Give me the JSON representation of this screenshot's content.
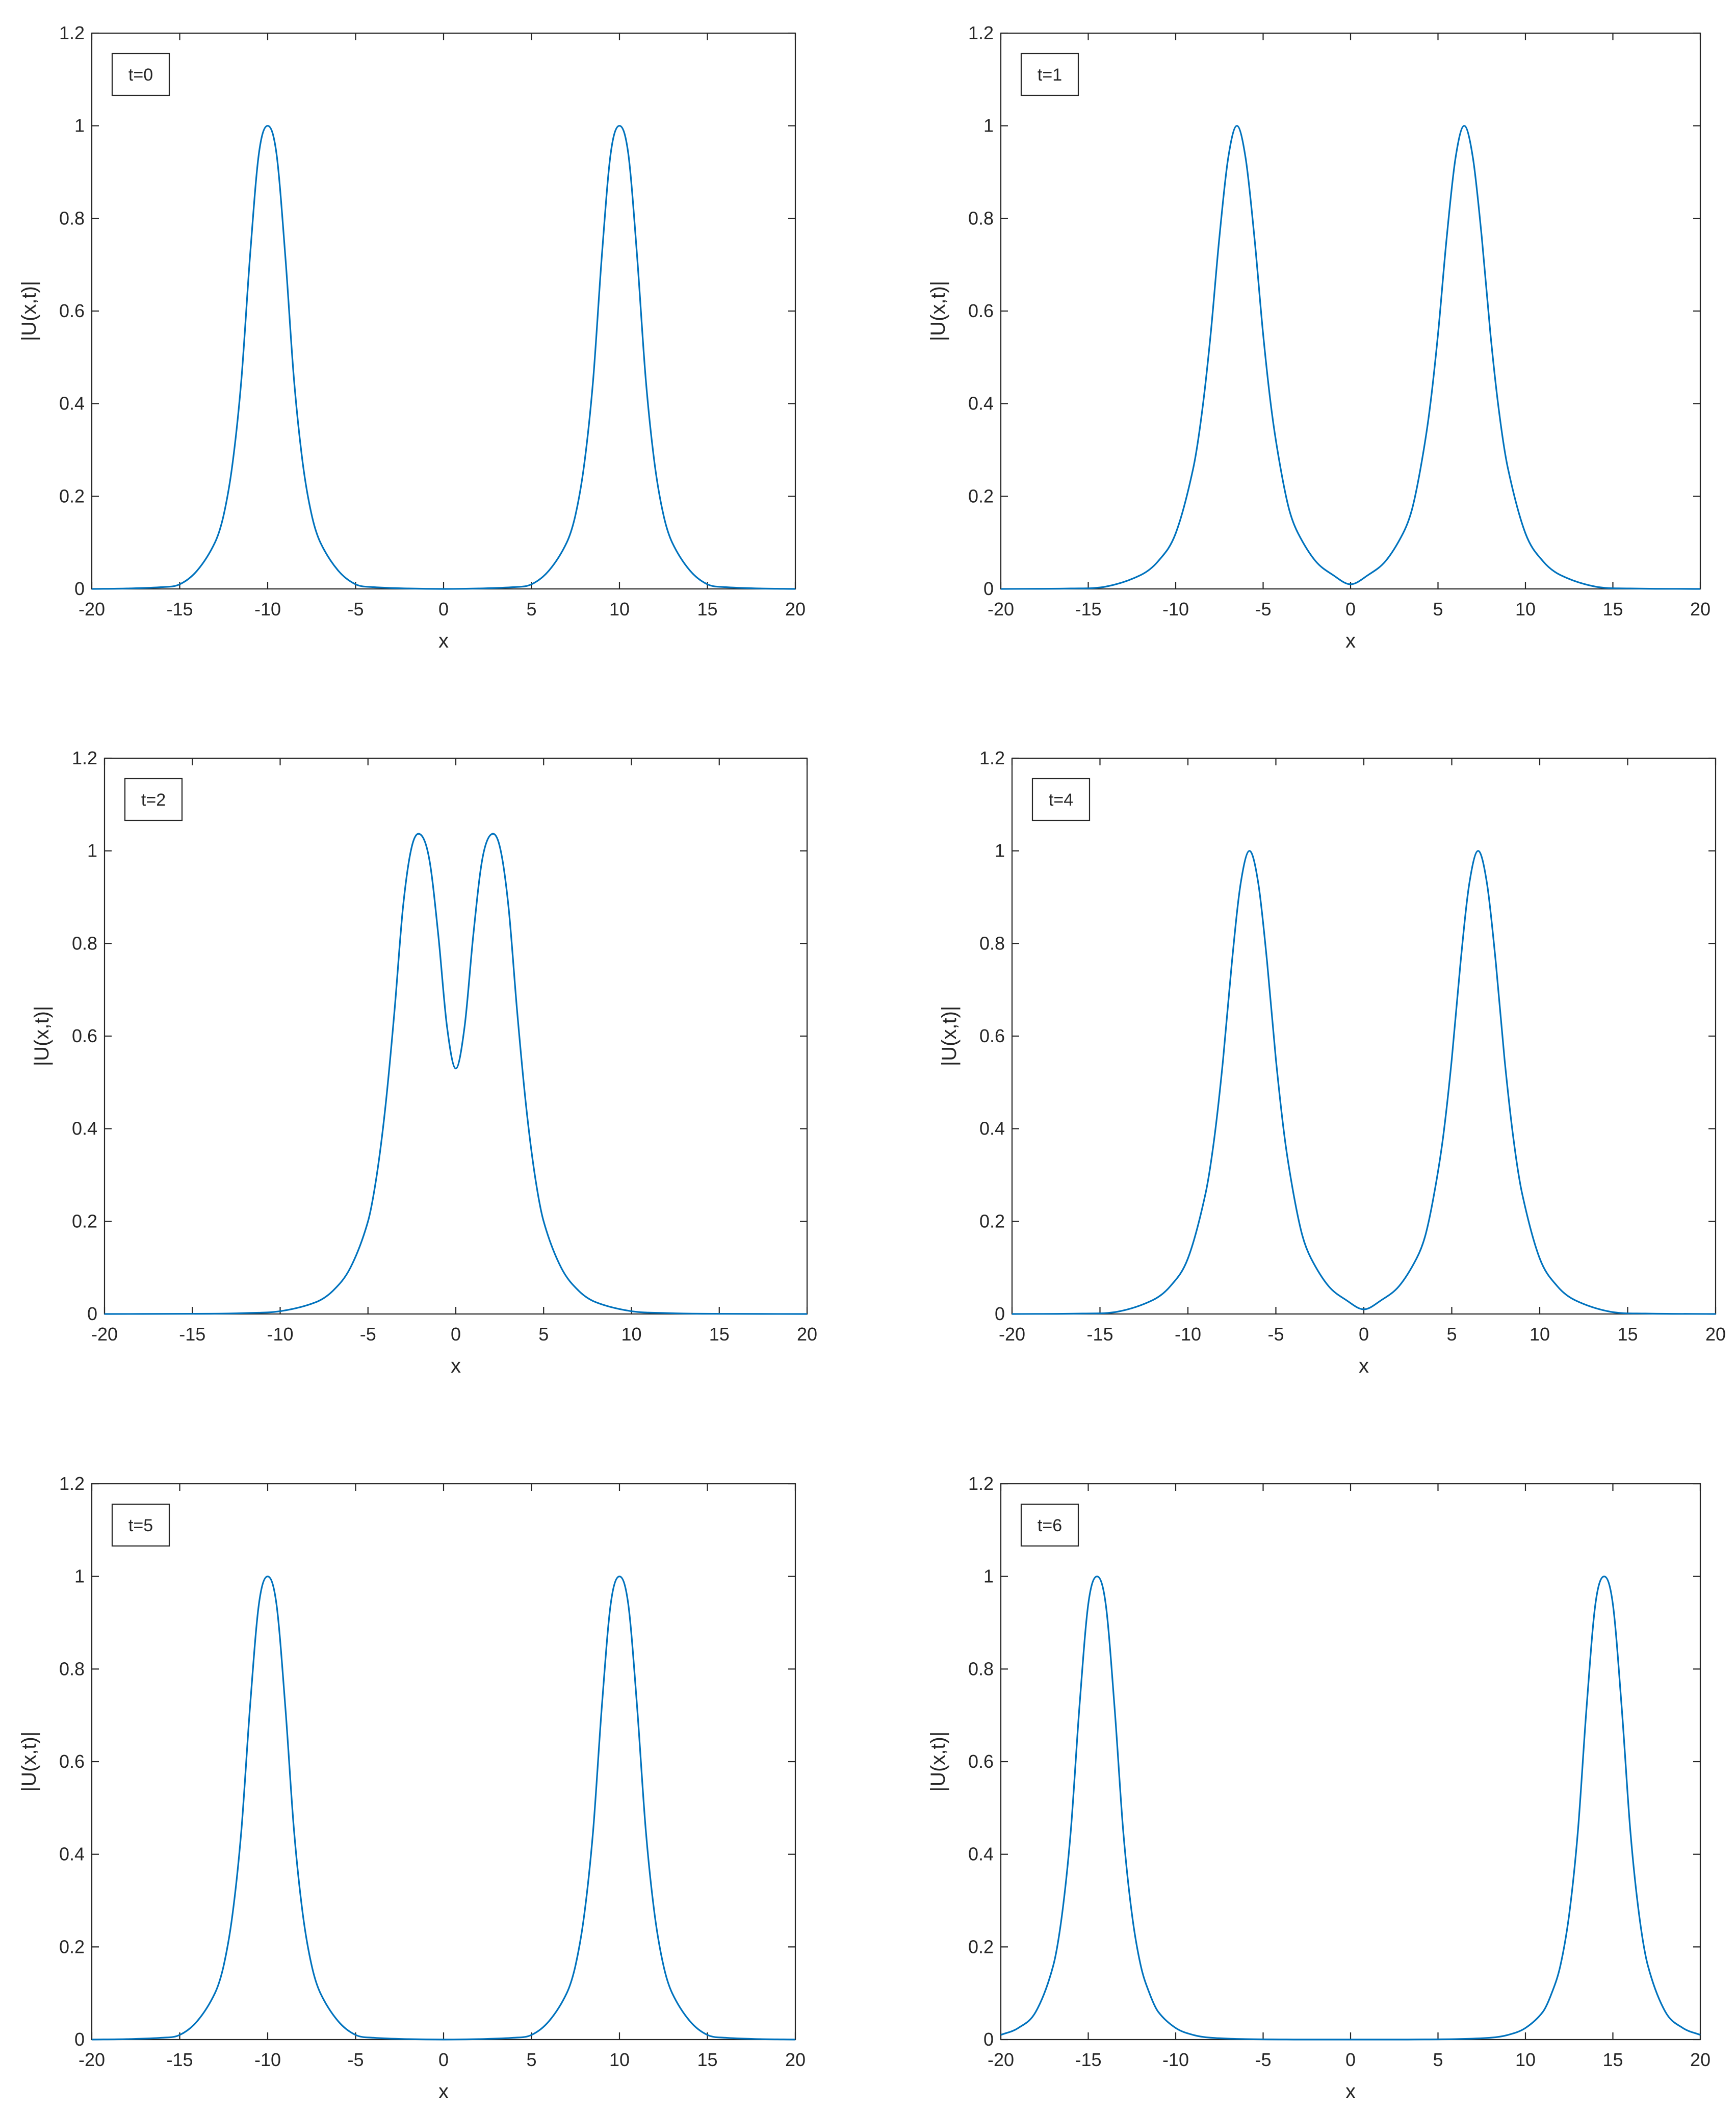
{
  "line_color": "#0072BD",
  "chart_data": [
    {
      "type": "line",
      "annotation": "t=0",
      "xlabel": "x",
      "ylabel": "|U(x,t)|",
      "xlim": [
        -20,
        20
      ],
      "ylim": [
        0,
        1.2
      ],
      "xticks": [
        "-20",
        "-15",
        "-10",
        "-5",
        "0",
        "5",
        "10",
        "15",
        "20"
      ],
      "yticks": [
        "0",
        "0.2",
        "0.4",
        "0.6",
        "0.8",
        "1",
        "1.2"
      ],
      "grid": false,
      "x": [
        -20,
        -18,
        -16,
        -15,
        -14,
        -13,
        -12.5,
        -12,
        -11.5,
        -11,
        -10.5,
        -10,
        -9.5,
        -9,
        -8.5,
        -8,
        -7.5,
        -7,
        -6,
        -5,
        -4,
        -2,
        0,
        2,
        4,
        5,
        6,
        7,
        7.5,
        8,
        8.5,
        9,
        9.5,
        10,
        10.5,
        11,
        11.5,
        12,
        12.5,
        13,
        14,
        15,
        16,
        18,
        20
      ],
      "y": [
        0,
        0.001,
        0.004,
        0.01,
        0.04,
        0.1,
        0.16,
        0.27,
        0.45,
        0.72,
        0.94,
        1.0,
        0.94,
        0.72,
        0.45,
        0.27,
        0.16,
        0.1,
        0.04,
        0.01,
        0.004,
        0.001,
        0,
        0.001,
        0.004,
        0.01,
        0.04,
        0.1,
        0.16,
        0.27,
        0.45,
        0.72,
        0.94,
        1.0,
        0.94,
        0.72,
        0.45,
        0.27,
        0.16,
        0.1,
        0.04,
        0.01,
        0.004,
        0.001,
        0
      ]
    },
    {
      "type": "line",
      "annotation": "t=1",
      "xlabel": "x",
      "ylabel": "|U(x,t)|",
      "xlim": [
        -20,
        20
      ],
      "ylim": [
        0,
        1.2
      ],
      "xticks": [
        "-20",
        "-15",
        "-10",
        "-5",
        "0",
        "5",
        "10",
        "15",
        "20"
      ],
      "yticks": [
        "0",
        "0.2",
        "0.4",
        "0.6",
        "0.8",
        "1",
        "1.2"
      ],
      "grid": false,
      "x": [
        -20,
        -16,
        -14,
        -12,
        -11,
        -10,
        -9,
        -8.5,
        -8,
        -7.5,
        -7,
        -6.5,
        -6,
        -5.5,
        -5,
        -4.5,
        -4,
        -3.5,
        -3,
        -2,
        -1,
        0,
        1,
        2,
        3,
        3.5,
        4,
        4.5,
        5,
        5.5,
        6,
        6.5,
        7,
        7.5,
        8,
        8.5,
        9,
        10,
        11,
        12,
        14,
        16,
        20
      ],
      "y": [
        0,
        0.001,
        0.005,
        0.03,
        0.06,
        0.12,
        0.26,
        0.38,
        0.55,
        0.76,
        0.93,
        1.0,
        0.93,
        0.76,
        0.55,
        0.38,
        0.26,
        0.17,
        0.12,
        0.06,
        0.03,
        0.01,
        0.03,
        0.06,
        0.12,
        0.17,
        0.26,
        0.38,
        0.55,
        0.76,
        0.93,
        1.0,
        0.93,
        0.76,
        0.55,
        0.38,
        0.26,
        0.12,
        0.06,
        0.03,
        0.005,
        0.001,
        0
      ]
    },
    {
      "type": "line",
      "annotation": "t=2",
      "xlabel": "x",
      "ylabel": "|U(x,t)|",
      "xlim": [
        -20,
        20
      ],
      "ylim": [
        0,
        1.2
      ],
      "xticks": [
        "-20",
        "-15",
        "-10",
        "-5",
        "0",
        "5",
        "10",
        "15",
        "20"
      ],
      "yticks": [
        "0",
        "0.2",
        "0.4",
        "0.6",
        "0.8",
        "1",
        "1.2"
      ],
      "grid": false,
      "x": [
        -20,
        -14,
        -12,
        -10,
        -8,
        -7,
        -6,
        -5,
        -4.5,
        -4,
        -3.5,
        -3,
        -2.5,
        -2,
        -1.5,
        -1,
        -0.5,
        0,
        0.5,
        1,
        1.5,
        2,
        2.5,
        3,
        3.5,
        4,
        4.5,
        5,
        6,
        7,
        8,
        10,
        12,
        14,
        20
      ],
      "y": [
        0,
        0.0005,
        0.002,
        0.006,
        0.025,
        0.05,
        0.1,
        0.2,
        0.3,
        0.45,
        0.65,
        0.88,
        1.01,
        1.035,
        0.98,
        0.82,
        0.62,
        0.53,
        0.62,
        0.82,
        0.98,
        1.035,
        1.01,
        0.88,
        0.65,
        0.45,
        0.3,
        0.2,
        0.1,
        0.05,
        0.025,
        0.006,
        0.002,
        0.0005,
        0
      ]
    },
    {
      "type": "line",
      "annotation": "t=4",
      "xlabel": "x",
      "ylabel": "|U(x,t)|",
      "xlim": [
        -20,
        20
      ],
      "ylim": [
        0,
        1.2
      ],
      "xticks": [
        "-20",
        "-15",
        "-10",
        "-5",
        "0",
        "5",
        "10",
        "15",
        "20"
      ],
      "yticks": [
        "0",
        "0.2",
        "0.4",
        "0.6",
        "0.8",
        "1",
        "1.2"
      ],
      "grid": false,
      "x": [
        -20,
        -16,
        -14,
        -12,
        -11,
        -10,
        -9,
        -8.5,
        -8,
        -7.5,
        -7,
        -6.5,
        -6,
        -5.5,
        -5,
        -4.5,
        -4,
        -3.5,
        -3,
        -2,
        -1,
        0,
        1,
        2,
        3,
        3.5,
        4,
        4.5,
        5,
        5.5,
        6,
        6.5,
        7,
        7.5,
        8,
        8.5,
        9,
        10,
        11,
        12,
        14,
        16,
        20
      ],
      "y": [
        0,
        0.001,
        0.005,
        0.03,
        0.06,
        0.12,
        0.26,
        0.38,
        0.55,
        0.76,
        0.93,
        1.0,
        0.93,
        0.76,
        0.55,
        0.38,
        0.26,
        0.17,
        0.12,
        0.06,
        0.03,
        0.01,
        0.03,
        0.06,
        0.12,
        0.17,
        0.26,
        0.38,
        0.55,
        0.76,
        0.93,
        1.0,
        0.93,
        0.76,
        0.55,
        0.38,
        0.26,
        0.12,
        0.06,
        0.03,
        0.005,
        0.001,
        0
      ]
    },
    {
      "type": "line",
      "annotation": "t=5",
      "xlabel": "x",
      "ylabel": "|U(x,t)|",
      "xlim": [
        -20,
        20
      ],
      "ylim": [
        0,
        1.2
      ],
      "xticks": [
        "-20",
        "-15",
        "-10",
        "-5",
        "0",
        "5",
        "10",
        "15",
        "20"
      ],
      "yticks": [
        "0",
        "0.2",
        "0.4",
        "0.6",
        "0.8",
        "1",
        "1.2"
      ],
      "grid": false,
      "x": [
        -20,
        -18,
        -16,
        -15,
        -14,
        -13,
        -12.5,
        -12,
        -11.5,
        -11,
        -10.5,
        -10,
        -9.5,
        -9,
        -8.5,
        -8,
        -7.5,
        -7,
        -6,
        -5,
        -4,
        -2,
        0,
        2,
        4,
        5,
        6,
        7,
        7.5,
        8,
        8.5,
        9,
        9.5,
        10,
        10.5,
        11,
        11.5,
        12,
        12.5,
        13,
        14,
        15,
        16,
        18,
        20
      ],
      "y": [
        0,
        0.001,
        0.004,
        0.01,
        0.04,
        0.1,
        0.16,
        0.27,
        0.45,
        0.72,
        0.94,
        1.0,
        0.94,
        0.72,
        0.45,
        0.27,
        0.16,
        0.1,
        0.04,
        0.01,
        0.004,
        0.001,
        0,
        0.001,
        0.004,
        0.01,
        0.04,
        0.1,
        0.16,
        0.27,
        0.45,
        0.72,
        0.94,
        1.0,
        0.94,
        0.72,
        0.45,
        0.27,
        0.16,
        0.1,
        0.04,
        0.01,
        0.004,
        0.001,
        0
      ]
    },
    {
      "type": "line",
      "annotation": "t=6",
      "xlabel": "x",
      "ylabel": "|U(x,t)|",
      "xlim": [
        -20,
        20
      ],
      "ylim": [
        0,
        1.2
      ],
      "xticks": [
        "-20",
        "-15",
        "-10",
        "-5",
        "0",
        "5",
        "10",
        "15",
        "20"
      ],
      "yticks": [
        "0",
        "0.2",
        "0.4",
        "0.6",
        "0.8",
        "1",
        "1.2"
      ],
      "grid": false,
      "x": [
        -20,
        -19,
        -18,
        -17,
        -16.5,
        -16,
        -15.5,
        -15,
        -14.5,
        -14,
        -13.5,
        -13,
        -12.5,
        -12,
        -11.5,
        -11,
        -10,
        -9,
        -8,
        -6,
        -3,
        0,
        3,
        6,
        8,
        9,
        10,
        11,
        11.5,
        12,
        12.5,
        13,
        13.5,
        14,
        14.5,
        15,
        15.5,
        16,
        16.5,
        17,
        18,
        19,
        20
      ],
      "y": [
        0.01,
        0.025,
        0.06,
        0.16,
        0.27,
        0.45,
        0.72,
        0.94,
        1.0,
        0.94,
        0.72,
        0.45,
        0.27,
        0.16,
        0.1,
        0.06,
        0.025,
        0.01,
        0.004,
        0.001,
        0,
        0,
        0,
        0.001,
        0.004,
        0.01,
        0.025,
        0.06,
        0.1,
        0.16,
        0.27,
        0.45,
        0.72,
        0.94,
        1.0,
        0.94,
        0.72,
        0.45,
        0.27,
        0.16,
        0.06,
        0.025,
        0.01
      ]
    }
  ]
}
